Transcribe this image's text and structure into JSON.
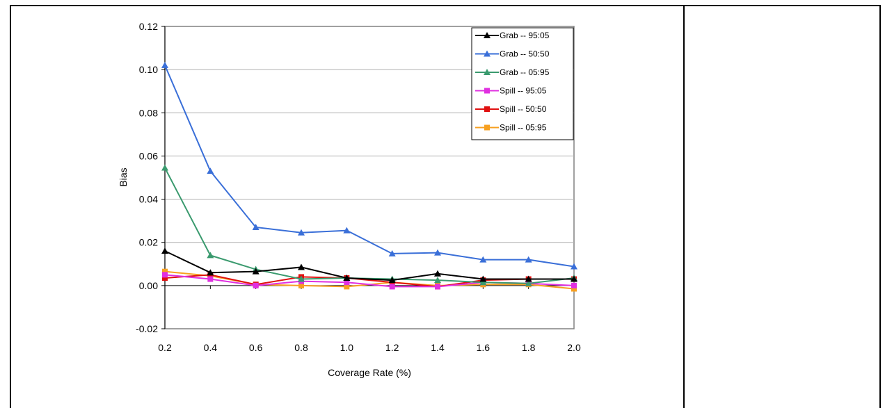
{
  "chart_data": {
    "type": "line",
    "title": "",
    "xlabel": "Coverage Rate (%)",
    "ylabel": "Bias",
    "x": [
      0.2,
      0.4,
      0.6,
      0.8,
      1.0,
      1.2,
      1.4,
      1.6,
      1.8,
      2.0
    ],
    "x_tick_labels": [
      "0.2",
      "0.4",
      "0.6",
      "0.8",
      "1.0",
      "1.2",
      "1.4",
      "1.6",
      "1.8",
      "2.0"
    ],
    "y_ticks": [
      -0.02,
      0.0,
      0.02,
      0.04,
      0.06,
      0.08,
      0.1,
      0.12
    ],
    "y_tick_labels": [
      "-0.02",
      "0.00",
      "0.02",
      "0.04",
      "0.06",
      "0.08",
      "0.10",
      "0.12"
    ],
    "xlim": [
      0.2,
      2.0
    ],
    "ylim": [
      -0.02,
      0.12
    ],
    "grid": "horizontal",
    "legend_position": "top-right",
    "series": [
      {
        "name": "Grab -- 95:05",
        "color": "#000000",
        "marker": "triangle",
        "values": [
          0.016,
          0.006,
          0.0065,
          0.0085,
          0.0035,
          0.0025,
          0.0055,
          0.003,
          0.003,
          0.003
        ]
      },
      {
        "name": "Grab -- 50:50",
        "color": "#3A6FD8",
        "marker": "triangle",
        "values": [
          0.102,
          0.053,
          0.027,
          0.0245,
          0.0255,
          0.0148,
          0.0152,
          0.012,
          0.012,
          0.0088
        ]
      },
      {
        "name": "Grab -- 05:95",
        "color": "#3A9A6E",
        "marker": "triangle",
        "values": [
          0.0545,
          0.014,
          0.0075,
          0.003,
          0.0035,
          0.003,
          0.0025,
          0.0015,
          0.001,
          0.0035
        ]
      },
      {
        "name": "Spill -- 95:05",
        "color": "#E030E0",
        "marker": "square",
        "values": [
          0.005,
          0.003,
          0.0,
          0.002,
          0.0015,
          -0.0005,
          -0.0005,
          0.0015,
          0.001,
          0.0
        ]
      },
      {
        "name": "Spill -- 50:50",
        "color": "#E01010",
        "marker": "square",
        "values": [
          0.0035,
          0.005,
          0.0005,
          0.004,
          0.0035,
          0.0015,
          -0.0005,
          0.0025,
          0.003,
          0.003
        ]
      },
      {
        "name": "Spill -- 05:95",
        "color": "#F7A020",
        "marker": "square",
        "values": [
          0.0065,
          0.0045,
          0.0005,
          0.0,
          -0.0005,
          0.0015,
          0.0,
          0.0005,
          0.0005,
          -0.0015
        ]
      }
    ]
  }
}
